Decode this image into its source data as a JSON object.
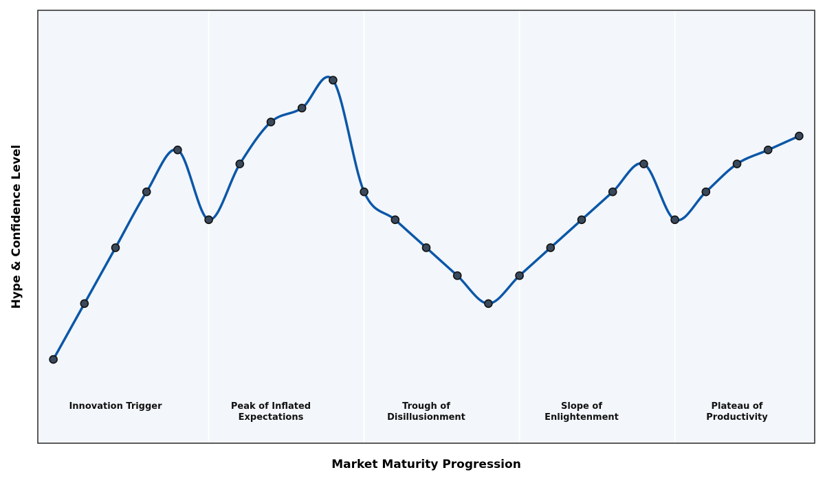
{
  "chart_data": {
    "type": "line",
    "title": "",
    "xlabel": "Market Maturity Progression",
    "ylabel": "Hype & Confidence Level",
    "x": [
      1,
      2,
      3,
      4,
      5,
      6,
      7,
      8,
      9,
      10,
      11,
      12,
      13,
      14,
      15,
      16,
      17,
      18,
      19,
      20,
      21,
      22,
      23,
      24,
      25
    ],
    "values": [
      10,
      20,
      30,
      40,
      47.5,
      35,
      45,
      52.5,
      55,
      60,
      40,
      35,
      30,
      25,
      20,
      25,
      30,
      35,
      40,
      45,
      35,
      40,
      45,
      47.5,
      50
    ],
    "xlim": [
      0.5,
      25.5
    ],
    "ylim": [
      -5,
      72.5
    ],
    "grid": false,
    "phases": [
      {
        "name": "Innovation Trigger",
        "lines": [
          "Innovation Trigger"
        ],
        "start": 0.5,
        "end": 6,
        "center": 3
      },
      {
        "name": "Peak of Inflated Expectations",
        "lines": [
          "Peak of Inflated",
          "Expectations"
        ],
        "start": 6,
        "end": 11,
        "center": 8
      },
      {
        "name": "Trough of Disillusionment",
        "lines": [
          "Trough of",
          "Disillusionment"
        ],
        "start": 11,
        "end": 16,
        "center": 13
      },
      {
        "name": "Slope of Enlightenment",
        "lines": [
          "Slope of",
          "Enlightenment"
        ],
        "start": 16,
        "end": 21,
        "center": 18
      },
      {
        "name": "Plateau of Productivity",
        "lines": [
          "Plateau of",
          "Productivity"
        ],
        "start": 21,
        "end": 25.5,
        "center": 23
      }
    ],
    "colors": {
      "line": "#0b57a8",
      "marker_fill": "#3a4a5c",
      "marker_edge": "#111111",
      "plot_bg": "#f3f6fa",
      "separator": "#ffffff",
      "frame": "#333333"
    }
  }
}
